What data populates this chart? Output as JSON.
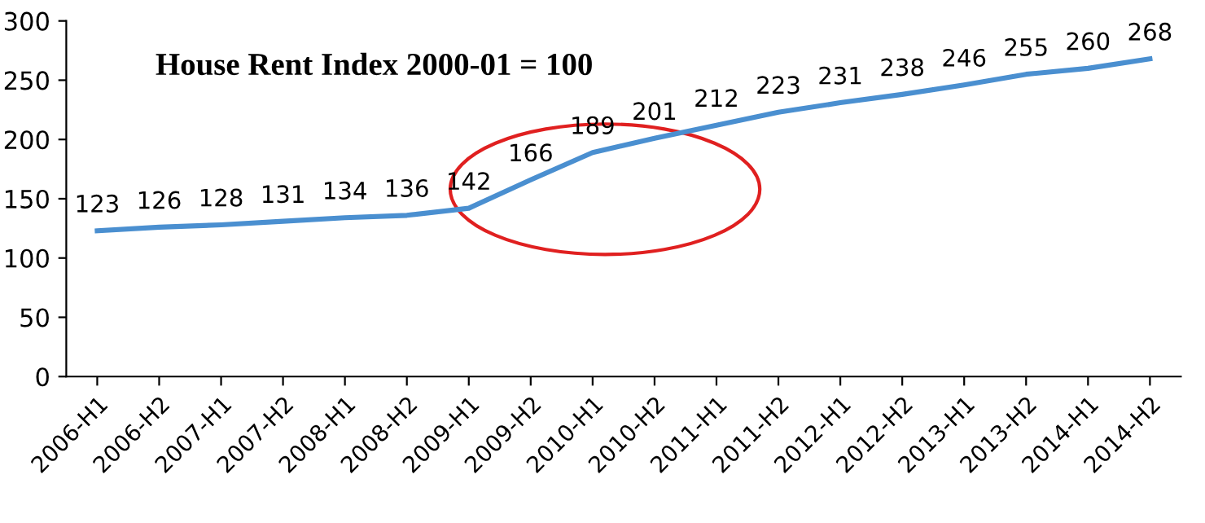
{
  "chart_data": {
    "type": "line",
    "title": "House Rent Index 2000-01 = 100",
    "categories": [
      "2006-H1",
      "2006-H2",
      "2007-H1",
      "2007-H2",
      "2008-H1",
      "2008-H2",
      "2009-H1",
      "2009-H2",
      "2010-H1",
      "2010-H2",
      "2011-H1",
      "2011-H2",
      "2012-H1",
      "2012-H2",
      "2013-H1",
      "2013-H2",
      "2014-H1",
      "2014-H2"
    ],
    "series": [
      {
        "color": "#4a8fd0",
        "values": [
          123,
          126,
          128,
          131,
          134,
          136,
          142,
          166,
          189,
          201,
          212,
          223,
          231,
          238,
          246,
          255,
          260,
          268
        ]
      }
    ],
    "ylim": [
      0,
      300
    ],
    "yticks": [
      0,
      50,
      100,
      150,
      200,
      250,
      300
    ],
    "data_labels": true,
    "grid": false,
    "marker": "none",
    "line_style": "solid"
  }
}
